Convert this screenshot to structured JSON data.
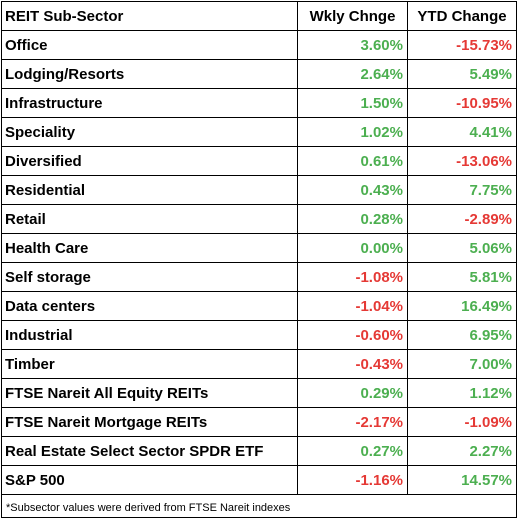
{
  "header": {
    "col_sector": "REIT Sub-Sector",
    "col_weekly": "Wkly Chnge",
    "col_ytd": "YTD Change"
  },
  "rows": [
    {
      "name": "Office",
      "weekly": "3.60%",
      "ytd": "-15.73%"
    },
    {
      "name": "Lodging/Resorts",
      "weekly": "2.64%",
      "ytd": "5.49%"
    },
    {
      "name": "Infrastructure",
      "weekly": "1.50%",
      "ytd": "-10.95%"
    },
    {
      "name": "Speciality",
      "weekly": "1.02%",
      "ytd": "4.41%"
    },
    {
      "name": "Diversified",
      "weekly": "0.61%",
      "ytd": "-13.06%"
    },
    {
      "name": "Residential",
      "weekly": "0.43%",
      "ytd": "7.75%"
    },
    {
      "name": "Retail",
      "weekly": "0.28%",
      "ytd": "-2.89%"
    },
    {
      "name": "Health Care",
      "weekly": "0.00%",
      "ytd": "5.06%"
    },
    {
      "name": "Self storage",
      "weekly": "-1.08%",
      "ytd": "5.81%"
    },
    {
      "name": "Data centers",
      "weekly": "-1.04%",
      "ytd": "16.49%"
    },
    {
      "name": "Industrial",
      "weekly": "-0.60%",
      "ytd": "6.95%"
    },
    {
      "name": "Timber",
      "weekly": "-0.43%",
      "ytd": "7.00%"
    },
    {
      "name": "FTSE Nareit All Equity REITs",
      "weekly": "0.29%",
      "ytd": "1.12%"
    },
    {
      "name": "FTSE Nareit Mortgage REITs",
      "weekly": "-2.17%",
      "ytd": "-1.09%"
    },
    {
      "name": "Real Estate Select Sector SPDR ETF",
      "weekly": "0.27%",
      "ytd": "2.27%"
    },
    {
      "name": "S&P 500",
      "weekly": "-1.16%",
      "ytd": "14.57%"
    }
  ],
  "footnote": "*Subsector values were derived from FTSE Nareit indexes",
  "colors": {
    "positive": "#4caf50",
    "negative": "#e53935"
  }
}
